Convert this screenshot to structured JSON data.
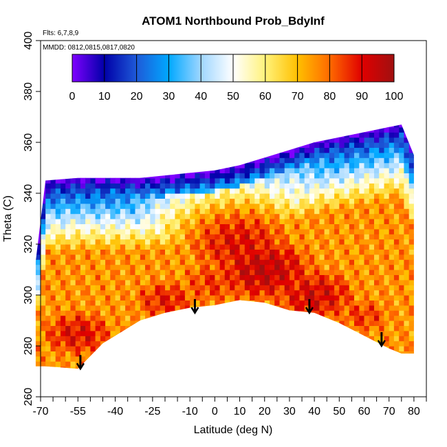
{
  "chart_data": {
    "type": "heatmap",
    "title": "ATOM1 Northbound Prob_BdyInf",
    "notes": [
      "Flts: 6,7,8,9",
      "MMDD: 0812,0815,0817,0820"
    ],
    "xlabel": "Latitude (deg N)",
    "ylabel": "Theta (C)",
    "xlim": [
      -70,
      85
    ],
    "ylim": [
      260,
      400
    ],
    "x_ticks": [
      -70,
      -55,
      -40,
      -25,
      -10,
      0,
      10,
      20,
      30,
      40,
      50,
      60,
      70,
      80
    ],
    "x_tick_labels": [
      "-70",
      "-55",
      "-40",
      "-25",
      "-10",
      "0",
      "10",
      "20",
      "30",
      "40",
      "50",
      "60",
      "70",
      "80"
    ],
    "x_minor_ticks": [
      -65,
      -60,
      -50,
      -45,
      -35,
      -30,
      -20,
      -15,
      -5,
      5,
      15,
      25,
      35,
      45,
      55,
      65,
      75,
      85
    ],
    "y_ticks": [
      260,
      280,
      300,
      320,
      340,
      360,
      380,
      400
    ],
    "y_tick_labels": [
      "260",
      "280",
      "300",
      "320",
      "340",
      "360",
      "380",
      "400"
    ],
    "colorbar": {
      "range": [
        0,
        100
      ],
      "ticks": [
        0,
        10,
        20,
        30,
        40,
        50,
        60,
        70,
        80,
        90,
        100
      ],
      "tick_labels": [
        "0",
        "10",
        "20",
        "30",
        "40",
        "50",
        "60",
        "70",
        "80",
        "90",
        "100"
      ],
      "colors": [
        "#7f00ff",
        "#0000a8",
        "#1e5ad8",
        "#00a8ff",
        "#9fd6ff",
        "#ffffff",
        "#fff27a",
        "#ffc000",
        "#ff6a00",
        "#e00000",
        "#a01010"
      ]
    },
    "data_region": {
      "lat": [
        -72,
        -68,
        -55,
        -50,
        -45,
        -40,
        -30,
        -20,
        -10,
        0,
        10,
        20,
        30,
        40,
        50,
        60,
        70,
        75,
        80
      ],
      "theta_top": [
        313,
        345,
        346,
        346,
        346,
        346,
        346,
        347,
        348,
        349,
        351,
        354,
        357,
        360,
        362,
        364,
        366,
        367,
        355
      ],
      "theta_bottom": [
        272,
        272,
        271,
        276,
        281,
        284,
        290,
        293,
        295,
        296,
        298,
        297,
        294,
        293,
        289,
        284,
        279,
        277,
        277
      ]
    },
    "arrows": [
      {
        "lat": -54,
        "theta": 271
      },
      {
        "lat": -8,
        "theta": 293
      },
      {
        "lat": 38,
        "theta": 293
      },
      {
        "lat": 67,
        "theta": 280
      }
    ],
    "prob_field": [
      {
        "lat": 10,
        "theta": 320,
        "value": 90,
        "spread": 22
      },
      {
        "lat": 20,
        "theta": 310,
        "value": 95,
        "spread": 20
      },
      {
        "lat": 0,
        "theta": 305,
        "value": 85,
        "spread": 18
      },
      {
        "lat": -20,
        "theta": 298,
        "value": 88,
        "spread": 15
      },
      {
        "lat": 40,
        "theta": 300,
        "value": 92,
        "spread": 18
      },
      {
        "lat": 60,
        "theta": 292,
        "value": 85,
        "spread": 14
      },
      {
        "lat": -55,
        "theta": 285,
        "value": 90,
        "spread": 16
      },
      {
        "lat": 30,
        "theta": 330,
        "value": 60,
        "spread": 20
      },
      {
        "lat": -30,
        "theta": 320,
        "value": 45,
        "spread": 18
      },
      {
        "lat": 55,
        "theta": 325,
        "value": 40,
        "spread": 18
      }
    ]
  }
}
